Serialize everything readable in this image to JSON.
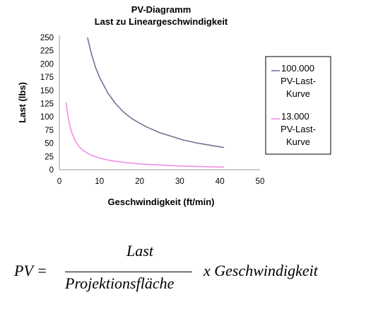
{
  "chart_data": {
    "type": "line",
    "title": "PV-Diagramm",
    "subtitle": "Last zu Lineargeschwindigkeit",
    "xlabel": "Geschwindigkeit (ft/min)",
    "ylabel": "Last (lbs)",
    "xlim": [
      0,
      50
    ],
    "ylim": [
      0,
      250
    ],
    "xticks": [
      "0",
      "10",
      "20",
      "30",
      "40",
      "50"
    ],
    "yticks": [
      "0",
      "25",
      "50",
      "75",
      "100",
      "125",
      "150",
      "175",
      "200",
      "225",
      "250"
    ],
    "grid": false,
    "legend_position": "right",
    "series": [
      {
        "name_lines": [
          "100.000",
          "PV-Last-",
          "Kurve"
        ],
        "color": "#7a6e96",
        "x": [
          7,
          8,
          9,
          10,
          12,
          14,
          16,
          18,
          20,
          22,
          25,
          28,
          31,
          34,
          37,
          41
        ],
        "y": [
          250,
          219,
          194,
          175,
          146,
          125,
          109,
          97,
          88,
          80,
          70,
          63,
          56,
          51,
          47,
          42
        ]
      },
      {
        "name_lines": [
          "13.000",
          "PV-Last-",
          "Kurve"
        ],
        "color": "#f08ce6",
        "x": [
          1.7,
          2,
          2.5,
          3,
          4,
          5,
          6,
          8,
          10,
          13,
          16,
          20,
          25,
          30,
          35,
          41
        ],
        "y": [
          127,
          108,
          87,
          72,
          54,
          43,
          36,
          27,
          22,
          17,
          14,
          11,
          9,
          7,
          6,
          5
        ]
      }
    ]
  },
  "formula": {
    "lhs": "PV =",
    "numerator": "Last",
    "denominator": "Projektionsfläche",
    "rhs": "x Geschwindigkeit"
  }
}
